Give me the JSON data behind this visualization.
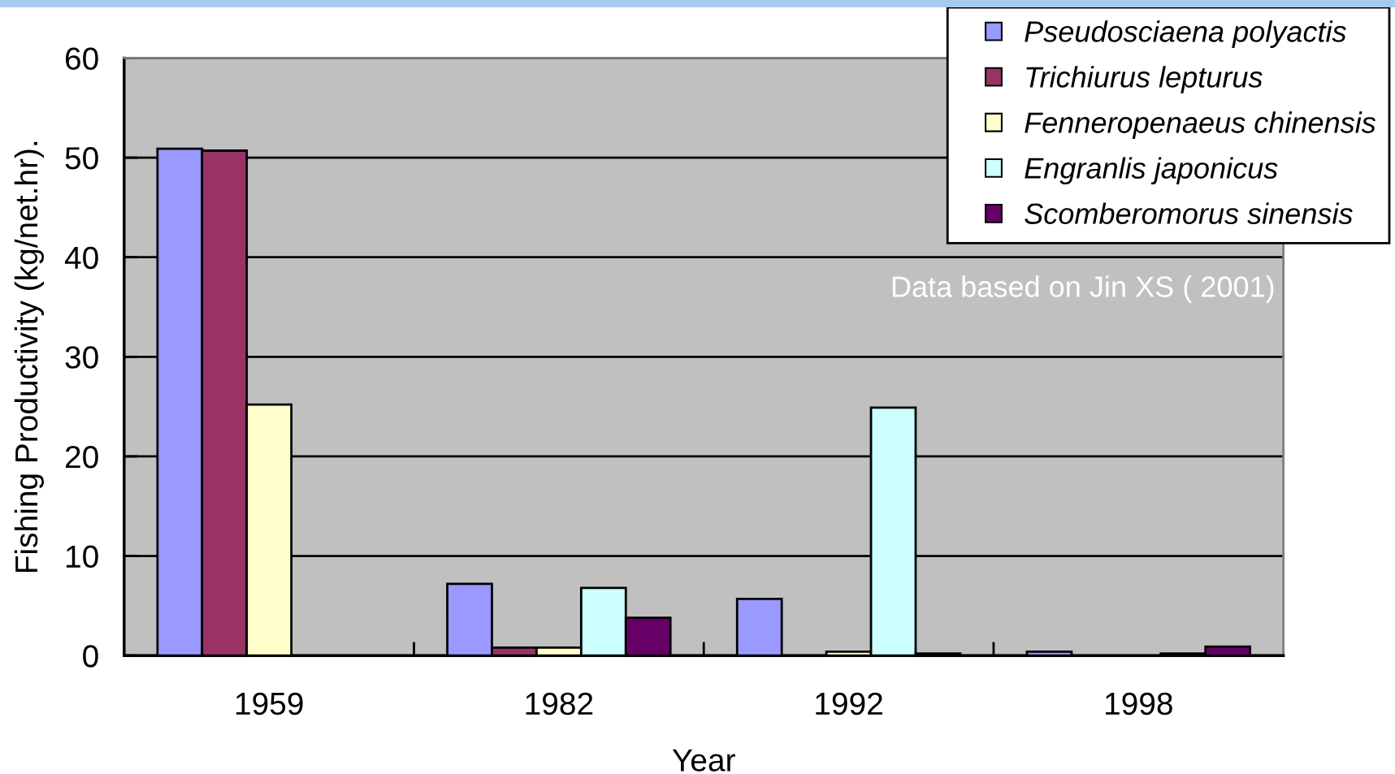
{
  "chart_data": {
    "type": "bar",
    "categories": [
      "1959",
      "1982",
      "1992",
      "1998"
    ],
    "series": [
      {
        "name": "Pseudosciaena polyactis",
        "color": "#9999ff",
        "values": [
          50.9,
          7.2,
          5.7,
          0.4
        ]
      },
      {
        "name": "Trichiurus lepturus",
        "color": "#993366",
        "values": [
          50.7,
          0.8,
          null,
          null
        ]
      },
      {
        "name": "Fenneropenaeus chinensis",
        "color": "#ffffcc",
        "values": [
          25.2,
          0.8,
          0.4,
          null
        ]
      },
      {
        "name": "Engranlis japonicus",
        "color": "#ccffff",
        "values": [
          null,
          6.8,
          24.9,
          0.2
        ]
      },
      {
        "name": "Scomberomorus sinensis",
        "color": "#660066",
        "values": [
          null,
          3.8,
          0.2,
          0.9
        ]
      }
    ],
    "xlabel": "Year",
    "ylabel": "Fishing Productivity (kg/net.hr).",
    "ylim": [
      0,
      60
    ],
    "yticks": [
      0,
      10,
      20,
      30,
      40,
      50,
      60
    ],
    "grid": "y",
    "legend": "top right",
    "annotations": [
      "Data based on Jin XS ( 2001)"
    ]
  }
}
